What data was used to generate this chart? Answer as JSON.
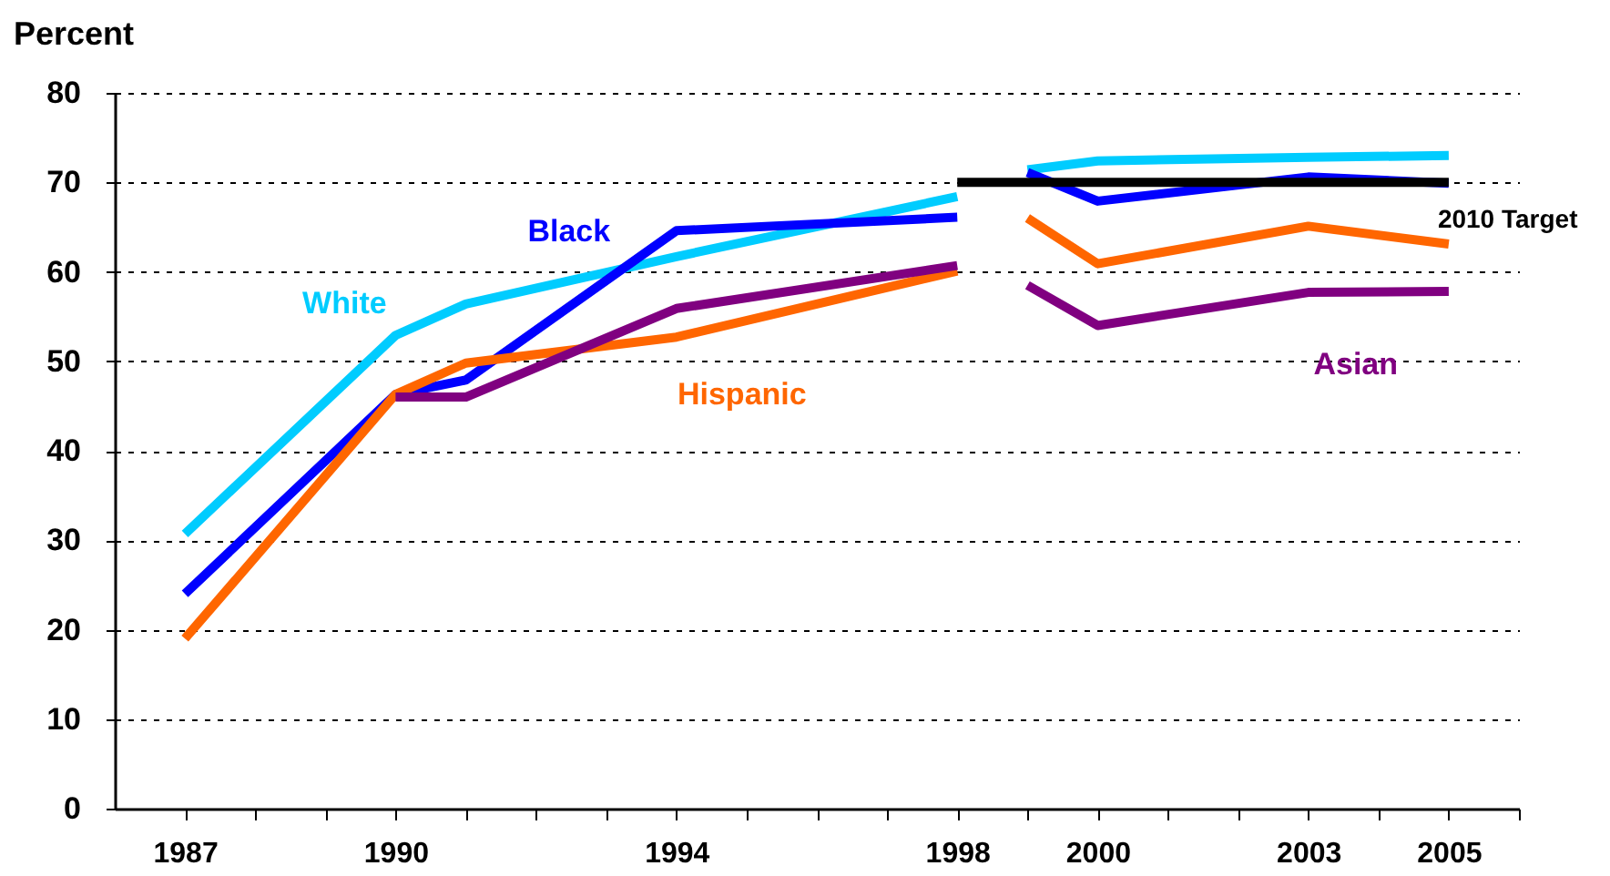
{
  "chart_data": {
    "type": "line",
    "ylabel": "Percent",
    "x": [
      1987,
      1990,
      1991,
      1994,
      1998,
      1998.5,
      1999,
      2000,
      2003,
      2005
    ],
    "series": [
      {
        "name": "White",
        "color": "#00ccff",
        "values": [
          30.7,
          52.9,
          56.4,
          61.7,
          68.4,
          null,
          71.4,
          72.4,
          72.8,
          73
        ]
      },
      {
        "name": "Black",
        "color": "#0000ff",
        "values": [
          24,
          46.3,
          47.9,
          64.6,
          66.1,
          null,
          71.1,
          67.9,
          70.6,
          69.9
        ]
      },
      {
        "name": "Hispanic",
        "color": "#ff6600",
        "values": [
          19,
          46.3,
          49.8,
          52.7,
          60.1,
          null,
          66,
          60.9,
          65.1,
          63.1
        ]
      },
      {
        "name": "Asian",
        "color": "#800080",
        "values": [
          null,
          46,
          46,
          55.9,
          60.7,
          null,
          58.5,
          54,
          57.7,
          57.8
        ]
      },
      {
        "name": "2010 Target",
        "color": "#000000",
        "x": [
          1998,
          2005
        ],
        "values": [
          70,
          70
        ]
      }
    ],
    "xlim": [
      1986,
      2006
    ],
    "xticks": [
      1987,
      {
        "value": 1988,
        "label": null
      },
      {
        "value": 1989,
        "label": null
      },
      1990,
      {
        "value": 1991,
        "label": null
      },
      {
        "value": 1992,
        "label": null
      },
      {
        "value": 1993,
        "label": null
      },
      1994,
      {
        "value": 1995,
        "label": null
      },
      {
        "value": 1996,
        "label": null
      },
      {
        "value": 1997,
        "label": null
      },
      1998,
      {
        "value": 1999,
        "label": null
      },
      2000,
      {
        "value": 2001,
        "label": null
      },
      {
        "value": 2002,
        "label": null
      },
      2003,
      {
        "value": 2004,
        "label": null
      },
      2005,
      {
        "value": 2006,
        "label": null
      }
    ],
    "ylim": [
      0,
      80
    ],
    "yticks": [
      0,
      10,
      20,
      30,
      40,
      50,
      60,
      70,
      80
    ],
    "grid": "y",
    "legend": false,
    "marker": "none",
    "line_style": "solid"
  }
}
